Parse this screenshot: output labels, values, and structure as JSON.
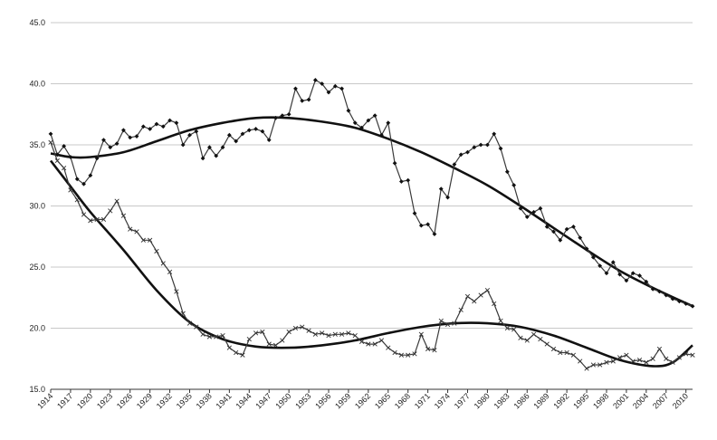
{
  "chart_data": {
    "type": "line",
    "title": "",
    "xlabel": "",
    "ylabel": "",
    "ylim": [
      15,
      45
    ],
    "y_ticks": [
      "15.0",
      "20.0",
      "25.0",
      "30.0",
      "35.0",
      "40.0",
      "45.0"
    ],
    "x_ticks": [
      "1914",
      "1917",
      "1920",
      "1923",
      "1926",
      "1929",
      "1932",
      "1935",
      "1938",
      "1941",
      "1944",
      "1947",
      "1950",
      "1953",
      "1956",
      "1959",
      "1962",
      "1965",
      "1968",
      "1971",
      "1974",
      "1977",
      "1980",
      "1983",
      "1986",
      "1989",
      "1992",
      "1995",
      "1998",
      "2001",
      "2004",
      "2007",
      "2010"
    ],
    "x_range": [
      1914,
      2011
    ],
    "grid": "horizontal",
    "legend": "none",
    "series": [
      {
        "marker": "diamond",
        "x": [
          1914,
          1915,
          1916,
          1917,
          1918,
          1919,
          1920,
          1921,
          1922,
          1923,
          1924,
          1925,
          1926,
          1927,
          1928,
          1929,
          1930,
          1931,
          1932,
          1933,
          1934,
          1935,
          1936,
          1937,
          1938,
          1939,
          1940,
          1941,
          1942,
          1943,
          1944,
          1945,
          1946,
          1947,
          1948,
          1949,
          1950,
          1951,
          1952,
          1953,
          1954,
          1955,
          1956,
          1957,
          1958,
          1959,
          1960,
          1961,
          1962,
          1963,
          1964,
          1965,
          1966,
          1967,
          1968,
          1969,
          1970,
          1971,
          1972,
          1973,
          1974,
          1975,
          1976,
          1977,
          1978,
          1979,
          1980,
          1981,
          1982,
          1983,
          1984,
          1985,
          1986,
          1987,
          1988,
          1989,
          1990,
          1991,
          1992,
          1993,
          1994,
          1995,
          1996,
          1997,
          1998,
          1999,
          2000,
          2001,
          2002,
          2003,
          2004,
          2005,
          2006,
          2007,
          2008,
          2009,
          2010,
          2011
        ],
        "values": [
          35.9,
          34.2,
          34.9,
          34.0,
          32.2,
          31.8,
          32.5,
          33.9,
          35.4,
          34.8,
          35.1,
          36.2,
          35.6,
          35.7,
          36.5,
          36.3,
          36.7,
          36.5,
          37.0,
          36.8,
          35.0,
          35.8,
          36.1,
          33.9,
          34.8,
          34.1,
          34.8,
          35.8,
          35.3,
          35.9,
          36.2,
          36.3,
          36.1,
          35.4,
          37.2,
          37.4,
          37.5,
          39.6,
          38.6,
          38.7,
          40.3,
          40.0,
          39.3,
          39.8,
          39.6,
          37.8,
          36.8,
          36.4,
          37.0,
          37.4,
          35.8,
          36.8,
          33.5,
          32.0,
          32.1,
          29.4,
          28.4,
          28.5,
          27.7,
          31.4,
          30.7,
          33.4,
          34.2,
          34.4,
          34.8,
          35.0,
          35.0,
          35.9,
          34.7,
          32.8,
          31.7,
          29.8,
          29.1,
          29.5,
          29.8,
          28.3,
          27.9,
          27.2,
          28.1,
          28.3,
          27.4,
          26.5,
          25.8,
          25.1,
          24.5,
          25.4,
          24.4,
          23.9,
          24.5,
          24.3,
          23.8,
          23.2,
          23.0,
          22.7,
          22.4,
          22.2,
          22.0,
          21.8
        ]
      },
      {
        "marker": "cross",
        "x": [
          1914,
          1915,
          1916,
          1917,
          1918,
          1919,
          1920,
          1921,
          1922,
          1923,
          1924,
          1925,
          1926,
          1927,
          1928,
          1929,
          1930,
          1931,
          1932,
          1933,
          1934,
          1935,
          1936,
          1937,
          1938,
          1939,
          1940,
          1941,
          1942,
          1943,
          1944,
          1945,
          1946,
          1947,
          1948,
          1949,
          1950,
          1951,
          1952,
          1953,
          1954,
          1955,
          1956,
          1957,
          1958,
          1959,
          1960,
          1961,
          1962,
          1963,
          1964,
          1965,
          1966,
          1967,
          1968,
          1969,
          1970,
          1971,
          1972,
          1973,
          1974,
          1975,
          1976,
          1977,
          1978,
          1979,
          1980,
          1981,
          1982,
          1983,
          1984,
          1985,
          1986,
          1987,
          1988,
          1989,
          1990,
          1991,
          1992,
          1993,
          1994,
          1995,
          1996,
          1997,
          1998,
          1999,
          2000,
          2001,
          2002,
          2003,
          2004,
          2005,
          2006,
          2007,
          2008,
          2009,
          2010,
          2011
        ],
        "values": [
          35.2,
          33.7,
          33.1,
          31.3,
          30.5,
          29.3,
          28.8,
          28.9,
          28.9,
          29.6,
          30.4,
          29.2,
          28.1,
          27.9,
          27.2,
          27.2,
          26.3,
          25.3,
          24.6,
          23.0,
          21.2,
          20.4,
          20.1,
          19.5,
          19.3,
          19.3,
          19.4,
          18.4,
          18.0,
          17.8,
          19.1,
          19.6,
          19.7,
          18.7,
          18.6,
          19.0,
          19.7,
          20.0,
          20.1,
          19.8,
          19.5,
          19.6,
          19.4,
          19.5,
          19.5,
          19.6,
          19.4,
          18.9,
          18.7,
          18.7,
          19.0,
          18.4,
          18.0,
          17.8,
          17.8,
          17.9,
          19.5,
          18.3,
          18.2,
          20.6,
          20.3,
          20.4,
          21.5,
          22.6,
          22.2,
          22.7,
          23.1,
          22.0,
          20.6,
          20.0,
          19.9,
          19.2,
          19.0,
          19.5,
          19.1,
          18.7,
          18.3,
          18.0,
          18.0,
          17.8,
          17.3,
          16.7,
          17.0,
          17.0,
          17.2,
          17.3,
          17.6,
          17.8,
          17.3,
          17.4,
          17.2,
          17.5,
          18.3,
          17.5,
          17.2,
          17.6,
          17.9,
          17.8
        ]
      }
    ],
    "trend_series": [
      {
        "x": [
          1914,
          1917,
          1920,
          1925,
          1930,
          1935,
          1940,
          1945,
          1950,
          1955,
          1960,
          1965,
          1970,
          1975,
          1980,
          1985,
          1990,
          1995,
          2000,
          2005,
          2011
        ],
        "values": [
          34.3,
          34.0,
          34.0,
          34.4,
          35.3,
          36.2,
          36.8,
          37.2,
          37.2,
          36.9,
          36.4,
          35.5,
          34.4,
          33.1,
          31.7,
          30.0,
          28.2,
          26.4,
          24.7,
          23.3,
          21.8
        ]
      },
      {
        "x": [
          1914,
          1917,
          1920,
          1925,
          1930,
          1935,
          1940,
          1945,
          1950,
          1955,
          1960,
          1965,
          1970,
          1975,
          1980,
          1985,
          1990,
          1995,
          2000,
          2005,
          2008,
          2011
        ],
        "values": [
          33.7,
          31.6,
          29.5,
          26.4,
          23.1,
          20.5,
          19.1,
          18.5,
          18.4,
          18.6,
          19.0,
          19.6,
          20.1,
          20.4,
          20.4,
          20.1,
          19.4,
          18.4,
          17.4,
          16.9,
          17.2,
          18.6
        ]
      }
    ]
  }
}
